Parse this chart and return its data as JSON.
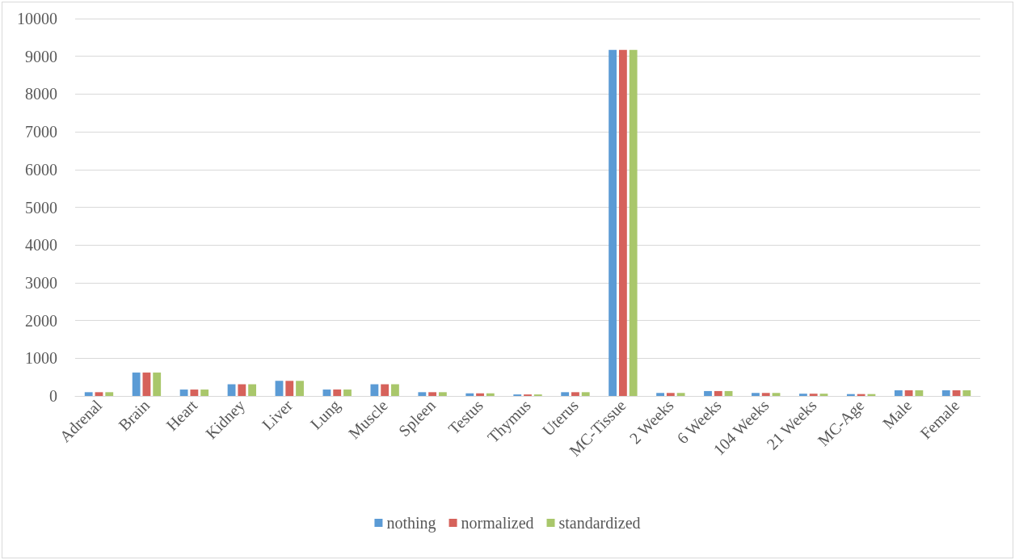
{
  "chart_data": {
    "type": "bar",
    "categories": [
      "Adrenal",
      "Brain",
      "Heart",
      "Kidney",
      "Liver",
      "Lung",
      "Muscle",
      "Spleen",
      "Testus",
      "Thymus",
      "Uterus",
      "MC-Tissue",
      "2 Weeks",
      "6 Weeks",
      "104 Weeks",
      "21 Weeks",
      "MC-Age",
      "Male",
      "Female"
    ],
    "series": [
      {
        "name": "nothing",
        "color": "#5b9bd5",
        "values": [
          100,
          620,
          170,
          310,
          400,
          170,
          310,
          100,
          70,
          40,
          100,
          9170,
          80,
          130,
          80,
          60,
          50,
          150,
          150
        ]
      },
      {
        "name": "normalized",
        "color": "#d6625b",
        "values": [
          100,
          620,
          170,
          310,
          400,
          170,
          310,
          100,
          70,
          40,
          100,
          9170,
          80,
          130,
          80,
          60,
          50,
          150,
          150
        ]
      },
      {
        "name": "standardized",
        "color": "#a9c76b",
        "values": [
          100,
          620,
          170,
          310,
          400,
          170,
          310,
          100,
          70,
          40,
          100,
          9170,
          80,
          130,
          80,
          60,
          50,
          150,
          150
        ]
      }
    ],
    "ylim": [
      0,
      10000
    ],
    "yticks": [
      0,
      1000,
      2000,
      3000,
      4000,
      5000,
      6000,
      7000,
      8000,
      9000,
      10000
    ],
    "grid": "y",
    "legend": "bottom"
  }
}
